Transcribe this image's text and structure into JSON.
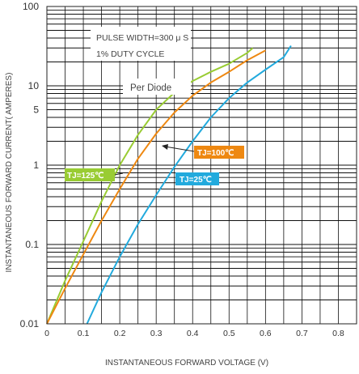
{
  "chart_data": {
    "type": "line",
    "xlabel": "INSTANTANEOUS FORWARD VOLTAGE (V)",
    "ylabel": "INSTANTANEOUS FORWARD CURRENT( AMPERES)",
    "xlim": [
      0,
      0.85
    ],
    "ylim": [
      0.01,
      100
    ],
    "yscale": "log",
    "grid": true,
    "x_ticks": [
      "0",
      "0.1",
      "0.2",
      "0.3",
      "0.4",
      "0.5",
      "0.6",
      "0.7",
      "0.8"
    ],
    "x_tick_values": [
      0,
      0.1,
      0.2,
      0.3,
      0.4,
      0.5,
      0.6,
      0.7,
      0.8
    ],
    "y_ticks": [
      "100",
      "10",
      "5",
      "1",
      "0.1",
      "0.01"
    ],
    "y_tick_values": [
      100,
      10,
      5,
      1,
      0.1,
      0.01
    ],
    "annotations": [
      "PULSE WIDTH=300 μ S",
      "1% DUTY CYCLE",
      "Per Diode"
    ],
    "series": [
      {
        "name": "TJ=125℃",
        "color": "#99cc33",
        "x": [
          0.0,
          0.05,
          0.1,
          0.15,
          0.2,
          0.25,
          0.3,
          0.35,
          0.4,
          0.45,
          0.5,
          0.55,
          0.565
        ],
        "y": [
          0.01,
          0.035,
          0.11,
          0.35,
          1.0,
          2.4,
          5.0,
          8.2,
          11.5,
          15.0,
          19.0,
          26.0,
          30.0
        ]
      },
      {
        "name": "TJ=100℃",
        "color": "#ee8811",
        "x": [
          0.0,
          0.05,
          0.1,
          0.15,
          0.2,
          0.25,
          0.3,
          0.35,
          0.4,
          0.45,
          0.5,
          0.55,
          0.6
        ],
        "y": [
          0.01,
          0.028,
          0.075,
          0.2,
          0.5,
          1.2,
          2.5,
          4.6,
          7.5,
          11.0,
          15.0,
          21.0,
          28.0
        ]
      },
      {
        "name": "TJ=25℃",
        "color": "#22aadd",
        "x": [
          0.11,
          0.15,
          0.2,
          0.25,
          0.3,
          0.35,
          0.4,
          0.45,
          0.5,
          0.55,
          0.6,
          0.65,
          0.67
        ],
        "y": [
          0.01,
          0.025,
          0.07,
          0.18,
          0.42,
          0.95,
          2.0,
          4.0,
          7.0,
          11.0,
          16.0,
          23.0,
          32.0
        ]
      }
    ]
  }
}
